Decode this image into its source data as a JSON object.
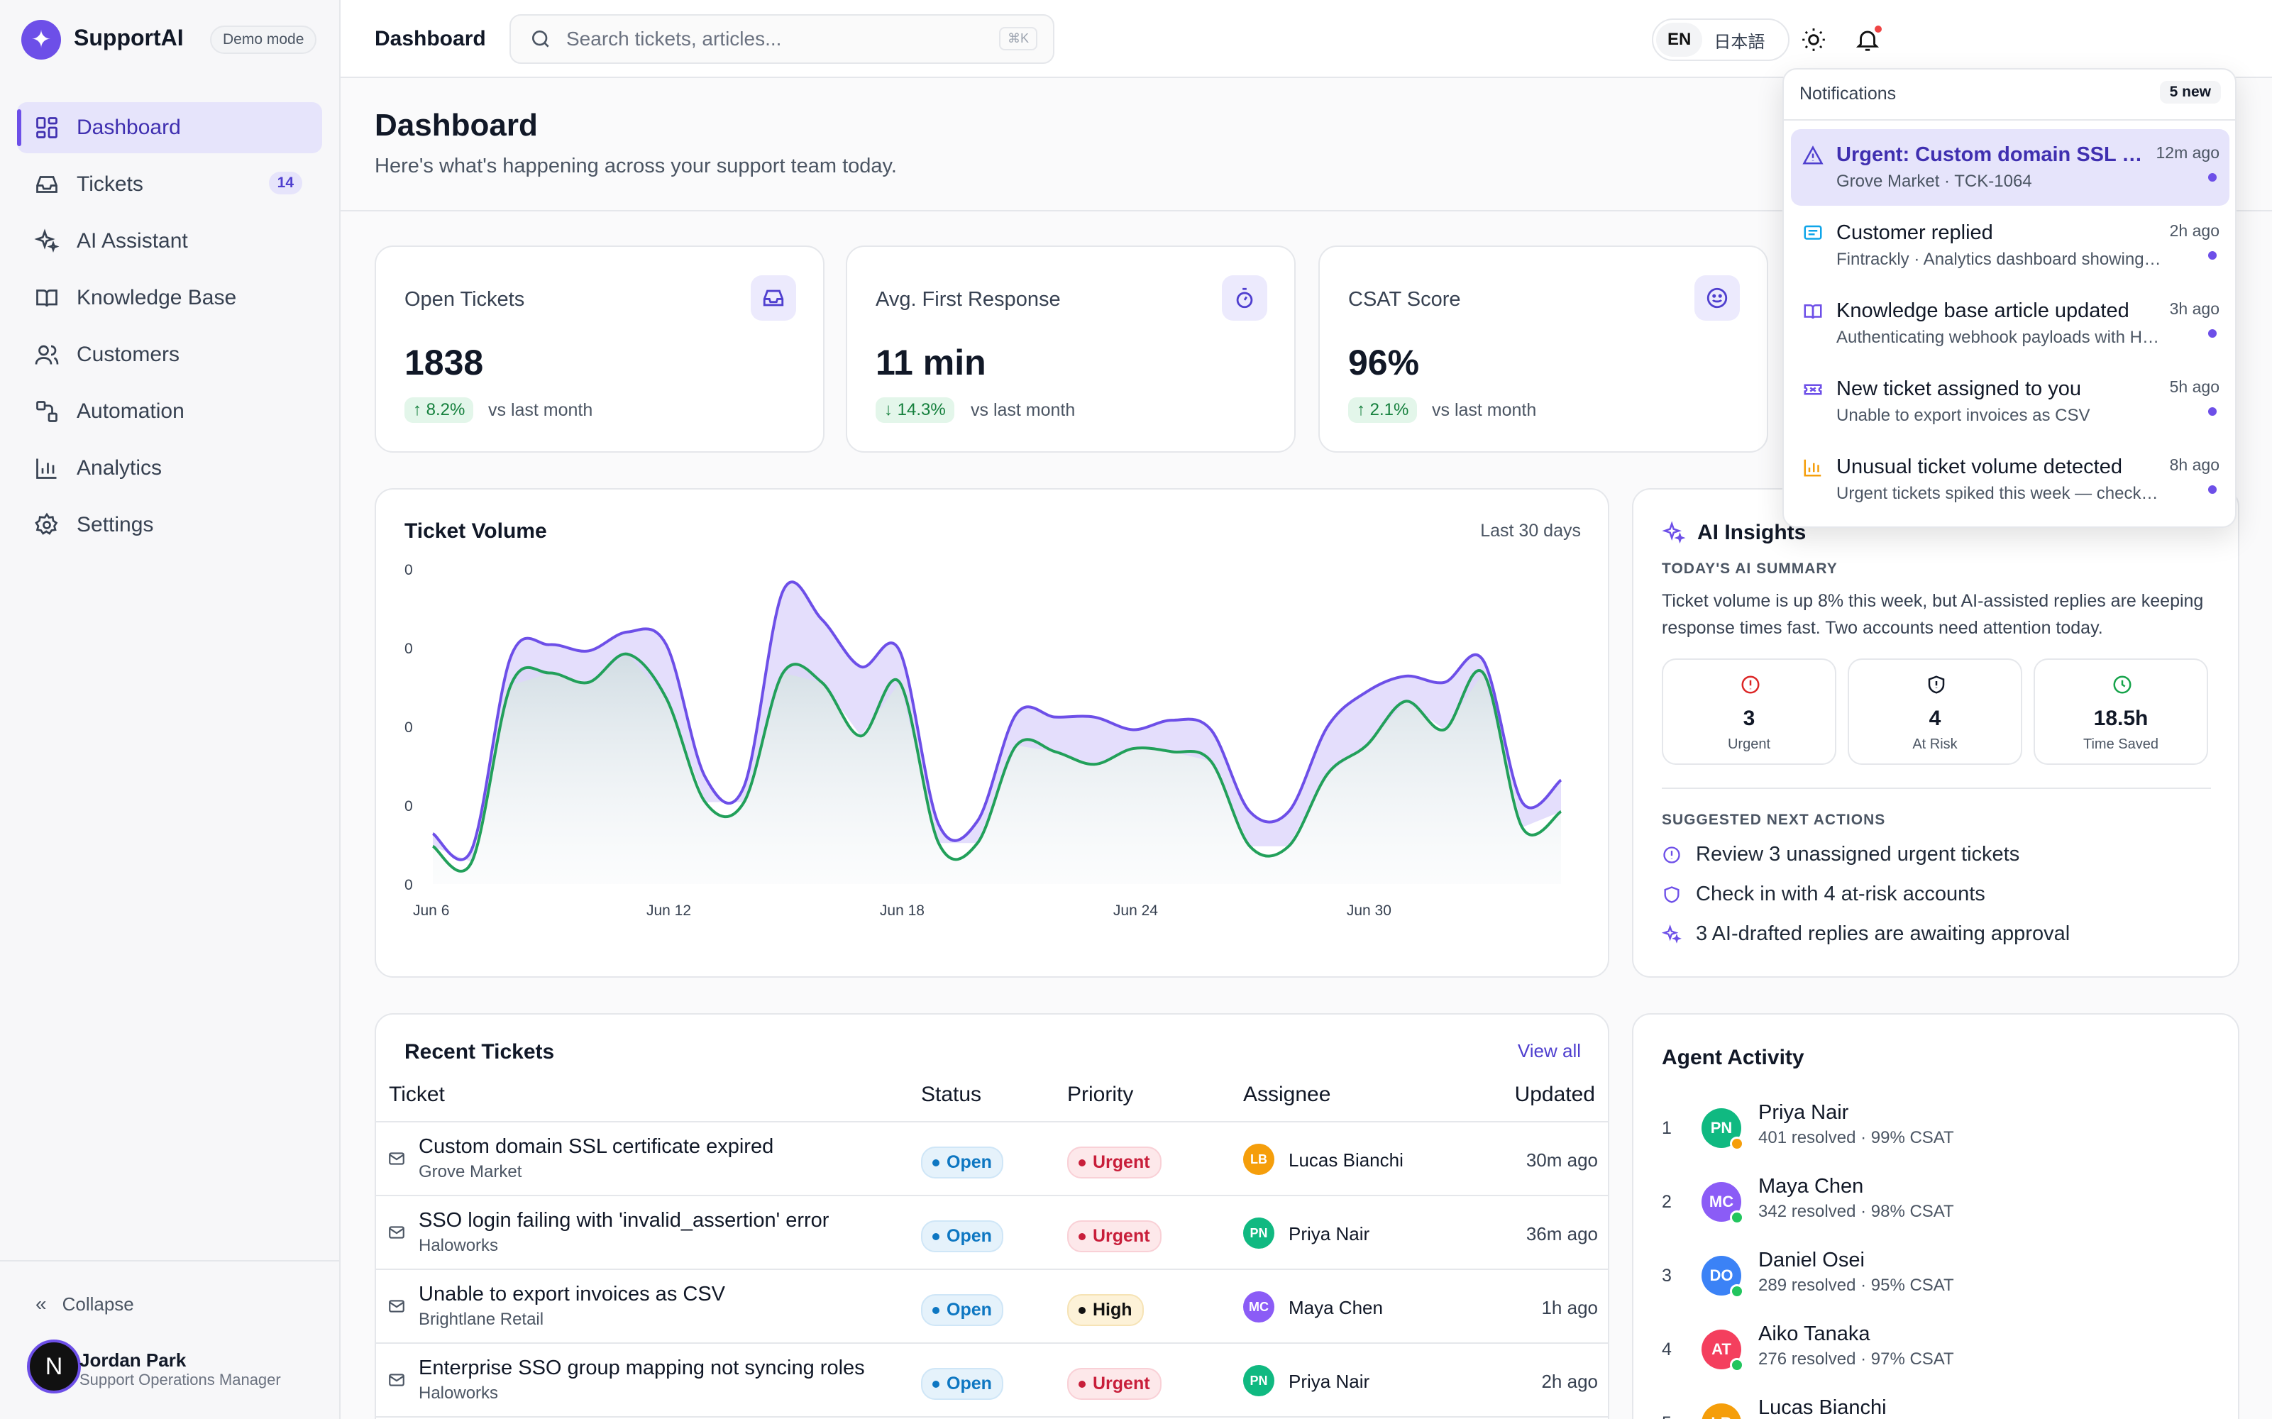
{
  "app": {
    "name": "SupportAI",
    "mode_badge": "Demo mode"
  },
  "sidebar": {
    "items": [
      {
        "label": "Dashboard",
        "icon": "dashboard-icon",
        "active": true
      },
      {
        "label": "Tickets",
        "icon": "inbox-icon",
        "badge": "14"
      },
      {
        "label": "AI Assistant",
        "icon": "sparkles-icon"
      },
      {
        "label": "Knowledge Base",
        "icon": "book-icon"
      },
      {
        "label": "Customers",
        "icon": "users-icon"
      },
      {
        "label": "Automation",
        "icon": "workflow-icon"
      },
      {
        "label": "Analytics",
        "icon": "bar-chart-icon"
      },
      {
        "label": "Settings",
        "icon": "gear-icon"
      }
    ],
    "collapse_label": "Collapse",
    "user": {
      "initial": "N",
      "name": "Jordan Park",
      "role": "Support Operations Manager"
    }
  },
  "header": {
    "title": "Dashboard",
    "search_placeholder": "Search tickets, articles...",
    "shortcut": "⌘K",
    "languages": [
      "EN",
      "日本語"
    ],
    "active_language": "EN"
  },
  "page": {
    "title": "Dashboard",
    "subtitle": "Here's what's happening across your support team today."
  },
  "stats": [
    {
      "label": "Open Tickets",
      "value": "1838",
      "delta": "↑ 8.2%",
      "comparison": "vs last month",
      "icon": "inbox-icon"
    },
    {
      "label": "Avg. First Response",
      "value": "11 min",
      "delta": "↓ 14.3%",
      "comparison": "vs last month",
      "icon": "stopwatch-icon"
    },
    {
      "label": "CSAT Score",
      "value": "96%",
      "delta": "↑ 2.1%",
      "comparison": "vs last month",
      "icon": "smile-icon"
    }
  ],
  "ticket_volume": {
    "title": "Ticket Volume",
    "range_label": "Last 30 days"
  },
  "chart_data": {
    "type": "area",
    "title": "Ticket Volume",
    "x": [
      "Jun 6",
      "Jun 7",
      "Jun 8",
      "Jun 9",
      "Jun 10",
      "Jun 11",
      "Jun 12",
      "Jun 13",
      "Jun 14",
      "Jun 15",
      "Jun 16",
      "Jun 17",
      "Jun 18",
      "Jun 19",
      "Jun 20",
      "Jun 21",
      "Jun 22",
      "Jun 23",
      "Jun 24",
      "Jun 25",
      "Jun 26",
      "Jun 27",
      "Jun 28",
      "Jun 29",
      "Jun 30",
      "Jul 1",
      "Jul 2",
      "Jul 3",
      "Jul 4",
      "Jul 5"
    ],
    "x_ticks": [
      "Jun 6",
      "Jun 12",
      "Jun 18",
      "Jun 24",
      "Jun 30"
    ],
    "y_ticks": [
      "0",
      "0",
      "0",
      "0",
      "0"
    ],
    "series": [
      {
        "color": "#6d4fe8",
        "values": [
          16,
          11,
          72,
          76,
          74,
          80,
          76,
          34,
          31,
          93,
          84,
          69,
          74,
          19,
          20,
          54,
          53,
          53,
          49,
          52,
          49,
          23,
          23,
          50,
          61,
          66,
          64,
          71,
          26,
          33
        ]
      },
      {
        "color": "#22a05a",
        "values": [
          12,
          7,
          63,
          67,
          64,
          73,
          59,
          26,
          26,
          67,
          64,
          47,
          64,
          13,
          13,
          44,
          42,
          38,
          43,
          42,
          39,
          12,
          12,
          35,
          44,
          58,
          49,
          67,
          18,
          23
        ]
      }
    ],
    "grid": false,
    "legend": "none"
  },
  "ai_insights": {
    "title": "AI Insights",
    "summary_caption": "TODAY'S AI SUMMARY",
    "summary": "Ticket volume is up 8% this week, but AI-assisted replies are keeping response times fast. Two accounts need attention today.",
    "metrics": [
      {
        "value": "3",
        "label": "Urgent",
        "icon": "alert-circle-icon",
        "color": "#dc2626"
      },
      {
        "value": "4",
        "label": "At Risk",
        "icon": "shield-icon",
        "color": "#111827"
      },
      {
        "value": "18.5h",
        "label": "Time Saved",
        "icon": "clock-icon",
        "color": "#16a34a"
      }
    ],
    "actions_caption": "SUGGESTED NEXT ACTIONS",
    "actions": [
      {
        "text": "Review 3 unassigned urgent tickets",
        "icon": "alert-circle-icon"
      },
      {
        "text": "Check in with 4 at-risk accounts",
        "icon": "shield-icon"
      },
      {
        "text": "3 AI-drafted replies are awaiting approval",
        "icon": "sparkles-icon"
      }
    ]
  },
  "recent_tickets": {
    "title": "Recent Tickets",
    "view_all": "View all",
    "columns": [
      "Ticket",
      "Status",
      "Priority",
      "Assignee",
      "Updated"
    ],
    "rows": [
      {
        "title": "Custom domain SSL certificate expired",
        "company": "Grove Market",
        "status": "Open",
        "priority": "Urgent",
        "assignee_initials": "LB",
        "assignee": "Lucas Bianchi",
        "avatar_color": "#f59e0b",
        "updated": "30m ago"
      },
      {
        "title": "SSO login failing with 'invalid_assertion' error",
        "company": "Haloworks",
        "status": "Open",
        "priority": "Urgent",
        "assignee_initials": "PN",
        "assignee": "Priya Nair",
        "avatar_color": "#10b981",
        "updated": "36m ago"
      },
      {
        "title": "Unable to export invoices as CSV",
        "company": "Brightlane Retail",
        "status": "Open",
        "priority": "High",
        "assignee_initials": "MC",
        "assignee": "Maya Chen",
        "avatar_color": "#8b5cf6",
        "updated": "1h ago"
      },
      {
        "title": "Enterprise SSO group mapping not syncing roles",
        "company": "Haloworks",
        "status": "Open",
        "priority": "Urgent",
        "assignee_initials": "PN",
        "assignee": "Priya Nair",
        "avatar_color": "#10b981",
        "updated": "2h ago"
      }
    ]
  },
  "agent_activity": {
    "title": "Agent Activity",
    "agents": [
      {
        "rank": "1",
        "initials": "PN",
        "name": "Priya Nair",
        "stats": "401 resolved · 99% CSAT",
        "color": "#10b981",
        "status_color": "#f59e0b"
      },
      {
        "rank": "2",
        "initials": "MC",
        "name": "Maya Chen",
        "stats": "342 resolved · 98% CSAT",
        "color": "#8b5cf6",
        "status_color": "#22c55e"
      },
      {
        "rank": "3",
        "initials": "DO",
        "name": "Daniel Osei",
        "stats": "289 resolved · 95% CSAT",
        "color": "#3b82f6",
        "status_color": "#22c55e"
      },
      {
        "rank": "4",
        "initials": "AT",
        "name": "Aiko Tanaka",
        "stats": "276 resolved · 97% CSAT",
        "color": "#f43f5e",
        "status_color": "#22c55e"
      },
      {
        "rank": "5",
        "initials": "LB",
        "name": "Lucas Bianchi",
        "stats": "",
        "color": "#f59e0b",
        "status_color": "#22c55e"
      }
    ]
  },
  "notifications": {
    "title": "Notifications",
    "new_count": "5 new",
    "items": [
      {
        "title": "Urgent: Custom domain SSL certificate expired",
        "sub": "Grove Market · TCK-1064",
        "time": "12m ago",
        "icon": "warning-triangle-icon",
        "icon_color": "#4f3fcf",
        "active": true
      },
      {
        "title": "Customer replied",
        "sub": "Fintrackly · Analytics dashboard showing stale data",
        "time": "2h ago",
        "icon": "message-icon",
        "icon_color": "#0ea5e9"
      },
      {
        "title": "Knowledge base article updated",
        "sub": "Authenticating webhook payloads with HMAC",
        "time": "3h ago",
        "icon": "book-icon",
        "icon_color": "#6d4fe8"
      },
      {
        "title": "New ticket assigned to you",
        "sub": "Unable to export invoices as CSV",
        "time": "5h ago",
        "icon": "ticket-icon",
        "icon_color": "#6d4fe8"
      },
      {
        "title": "Unusual ticket volume detected",
        "sub": "Urgent tickets spiked this week — check routing",
        "time": "8h ago",
        "icon": "bar-chart-icon",
        "icon_color": "#f59e0b"
      }
    ]
  }
}
